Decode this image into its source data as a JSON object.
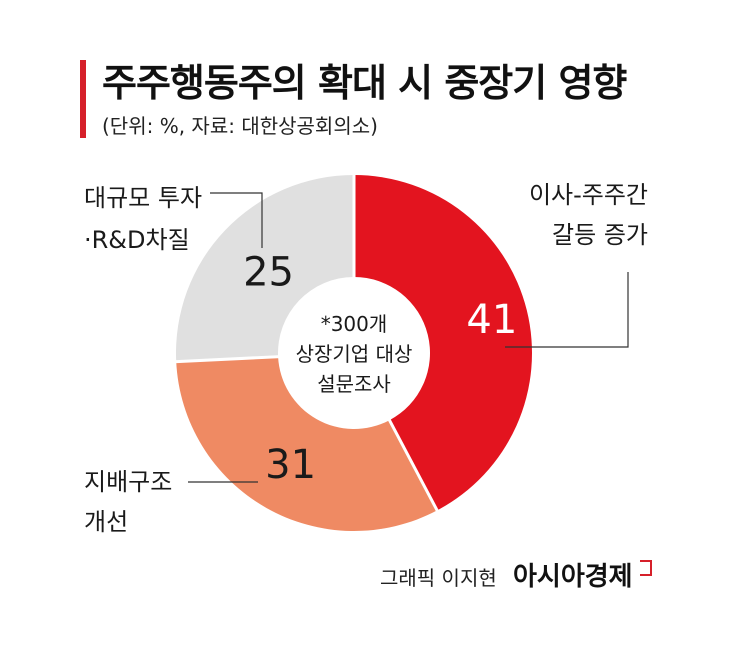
{
  "header": {
    "title": "주주행동주의 확대 시 중장기 영향",
    "subtitle": "(단위: %, 자료: 대한상공회의소)"
  },
  "chart_data": {
    "type": "pie",
    "style": "donut",
    "center_note": [
      "*300개",
      "상장기업 대상",
      "설문조사"
    ],
    "slices": [
      {
        "label": "이사-주주간 갈등 증가",
        "label_lines": [
          "이사-주주간",
          "갈등 증가"
        ],
        "value": 41,
        "color": "#e3141f",
        "value_color": "#ffffff"
      },
      {
        "label": "지배구조 개선",
        "label_lines": [
          "지배구조",
          "개선"
        ],
        "value": 31,
        "color": "#ef8a63",
        "value_color": "#1a1a1a"
      },
      {
        "label": "대규모 투자 ·R&D차질",
        "label_lines": [
          "대규모 투자",
          "·R&D차질"
        ],
        "value": 25,
        "color": "#e0e0e0",
        "value_color": "#1a1a1a"
      }
    ]
  },
  "footer": {
    "credit": "그래픽 이지현",
    "brand": "아시아경제"
  }
}
